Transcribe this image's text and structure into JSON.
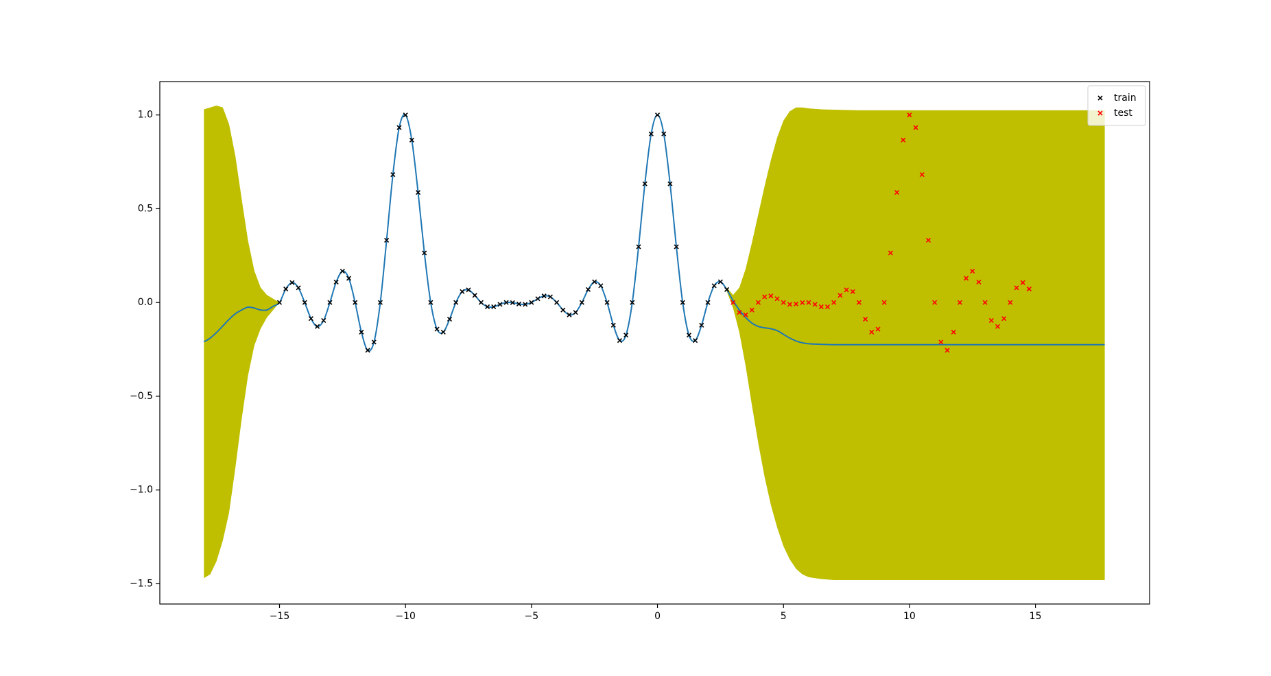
{
  "chart_data": {
    "type": "gp",
    "xlim": [
      -19.75,
      19.53
    ],
    "ylim": [
      -1.608,
      1.178
    ],
    "xticks": [
      {
        "value": -15,
        "label": "−15"
      },
      {
        "value": -10,
        "label": "−10"
      },
      {
        "value": -5,
        "label": "−5"
      },
      0,
      5,
      10,
      15
    ],
    "yticks": [
      {
        "value": -1.5,
        "label": "−1.5"
      },
      {
        "value": -1,
        "label": "−1.0"
      },
      {
        "value": -0.5,
        "label": "−0.5"
      },
      {
        "value": 0,
        "label": "0.0"
      },
      0.5,
      {
        "value": 1,
        "label": "1.0"
      }
    ],
    "grid": false,
    "legend": "upper right",
    "prediction": {
      "line_color": "#1f77b4",
      "band_color": "#bfbf00",
      "x": [
        -18,
        -17.75,
        -17.5,
        -17.25,
        -17,
        -16.75,
        -16.5,
        -16.25,
        -16,
        -15.75,
        -15.5,
        -15.25,
        -15,
        -14.75,
        -14.5,
        -14.25,
        -14,
        -13.75,
        -13.5,
        -13.25,
        -13,
        -12.75,
        -12.5,
        -12.25,
        -12,
        -11.75,
        -11.5,
        -11.25,
        -11,
        -10.75,
        -10.5,
        -10.25,
        -10,
        -9.75,
        -9.5,
        -9.25,
        -9,
        -8.75,
        -8.5,
        -8.25,
        -8,
        -7.75,
        -7.5,
        -7.25,
        -7,
        -6.75,
        -6.5,
        -6.25,
        -6,
        -5.75,
        -5.5,
        -5.25,
        -5,
        -4.75,
        -4.5,
        -4.25,
        -4,
        -3.75,
        -3.5,
        -3.25,
        -3,
        -2.75,
        -2.5,
        -2.25,
        -2,
        -1.75,
        -1.5,
        -1.25,
        -1,
        -0.75,
        -0.5,
        -0.25,
        0,
        0.25,
        0.5,
        0.75,
        1,
        1.25,
        1.5,
        1.75,
        2,
        2.25,
        2.5,
        2.75,
        3,
        3.25,
        3.5,
        3.75,
        4,
        4.25,
        4.5,
        4.75,
        5,
        5.25,
        5.5,
        5.75,
        6,
        6.5,
        7,
        8,
        9,
        10,
        11,
        12,
        13,
        14,
        15,
        16,
        17,
        17.75
      ],
      "mean": [
        -0.21,
        -0.19,
        -0.16,
        -0.125,
        -0.09,
        -0.06,
        -0.04,
        -0.025,
        -0.03,
        -0.04,
        -0.04,
        -0.02,
        0,
        0.072,
        0.106,
        0.078,
        0,
        -0.086,
        -0.128,
        -0.096,
        0,
        0.109,
        0.167,
        0.129,
        0,
        -0.158,
        -0.255,
        -0.211,
        0,
        0.332,
        0.682,
        0.933,
        1,
        0.866,
        0.587,
        0.264,
        0,
        -0.142,
        -0.158,
        -0.089,
        0,
        0.058,
        0.067,
        0.038,
        0,
        -0.023,
        -0.023,
        -0.01,
        0,
        -0.001,
        -0.008,
        -0.01,
        0,
        0.02,
        0.035,
        0.03,
        0,
        -0.04,
        -0.066,
        -0.053,
        0,
        0.069,
        0.11,
        0.089,
        0,
        -0.121,
        -0.203,
        -0.174,
        0,
        0.297,
        0.633,
        0.899,
        1,
        0.899,
        0.633,
        0.297,
        0,
        -0.174,
        -0.203,
        -0.121,
        0,
        0.089,
        0.11,
        0.069,
        0.01,
        -0.04,
        -0.08,
        -0.11,
        -0.128,
        -0.135,
        -0.14,
        -0.15,
        -0.17,
        -0.19,
        -0.205,
        -0.215,
        -0.22,
        -0.223,
        -0.225,
        -0.225,
        -0.225,
        -0.225,
        -0.225,
        -0.225,
        -0.225,
        -0.225,
        -0.225,
        -0.225,
        -0.225,
        -0.225
      ],
      "upper": [
        1.03,
        1.04,
        1.05,
        1.04,
        0.95,
        0.78,
        0.55,
        0.33,
        0.17,
        0.08,
        0.04,
        0.02,
        0,
        null,
        null,
        null,
        null,
        null,
        null,
        null,
        null,
        null,
        null,
        null,
        null,
        null,
        null,
        null,
        null,
        null,
        null,
        null,
        null,
        null,
        null,
        null,
        null,
        null,
        null,
        null,
        null,
        null,
        null,
        null,
        null,
        null,
        null,
        null,
        null,
        null,
        null,
        null,
        null,
        null,
        null,
        null,
        null,
        null,
        null,
        null,
        null,
        null,
        null,
        null,
        null,
        null,
        null,
        null,
        null,
        null,
        null,
        null,
        null,
        null,
        null,
        null,
        null,
        null,
        null,
        null,
        null,
        null,
        null,
        0.08,
        0.04,
        0.08,
        0.18,
        0.32,
        0.47,
        0.62,
        0.76,
        0.88,
        0.97,
        1.02,
        1.04,
        1.04,
        1.035,
        1.03,
        1.028,
        1.025,
        1.025,
        1.025,
        1.025,
        1.025,
        1.025,
        1.025,
        1.025,
        1.025,
        1.025,
        1.025
      ],
      "lower": [
        -1.47,
        -1.45,
        -1.38,
        -1.27,
        -1.12,
        -0.88,
        -0.62,
        -0.39,
        -0.23,
        -0.14,
        -0.08,
        -0.04,
        0,
        null,
        null,
        null,
        null,
        null,
        null,
        null,
        null,
        null,
        null,
        null,
        null,
        null,
        null,
        null,
        null,
        null,
        null,
        null,
        null,
        null,
        null,
        null,
        null,
        null,
        null,
        null,
        null,
        null,
        null,
        null,
        null,
        null,
        null,
        null,
        null,
        null,
        null,
        null,
        null,
        null,
        null,
        null,
        null,
        null,
        null,
        null,
        null,
        null,
        null,
        null,
        null,
        null,
        null,
        null,
        null,
        null,
        null,
        null,
        null,
        null,
        null,
        null,
        null,
        null,
        null,
        null,
        null,
        null,
        null,
        0.06,
        -0.03,
        -0.16,
        -0.34,
        -0.55,
        -0.75,
        -0.93,
        -1.08,
        -1.2,
        -1.3,
        -1.37,
        -1.42,
        -1.45,
        -1.465,
        -1.475,
        -1.48,
        -1.48,
        -1.48,
        -1.48,
        -1.48,
        -1.48,
        -1.48,
        -1.48,
        -1.48,
        -1.48,
        -1.48,
        -1.48
      ]
    },
    "series": [
      {
        "name": "train",
        "color": "#000000",
        "x": [
          -15,
          -14.75,
          -14.5,
          -14.25,
          -14,
          -13.75,
          -13.5,
          -13.25,
          -13,
          -12.75,
          -12.5,
          -12.25,
          -12,
          -11.75,
          -11.5,
          -11.25,
          -11,
          -10.75,
          -10.5,
          -10.25,
          -10,
          -9.75,
          -9.5,
          -9.25,
          -9,
          -8.75,
          -8.5,
          -8.25,
          -8,
          -7.75,
          -7.5,
          -7.25,
          -7,
          -6.75,
          -6.5,
          -6.25,
          -6,
          -5.75,
          -5.5,
          -5.25,
          -5,
          -4.75,
          -4.5,
          -4.25,
          -4,
          -3.75,
          -3.5,
          -3.25,
          -3,
          -2.75,
          -2.5,
          -2.25,
          -2,
          -1.75,
          -1.5,
          -1.25,
          -1,
          -0.75,
          -0.5,
          -0.25,
          0,
          0.25,
          0.5,
          0.75,
          1,
          1.25,
          1.5,
          1.75,
          2,
          2.25,
          2.5,
          2.75
        ],
        "values": [
          0,
          0.072,
          0.106,
          0.078,
          0,
          -0.086,
          -0.128,
          -0.096,
          0,
          0.109,
          0.167,
          0.129,
          0,
          -0.158,
          -0.255,
          -0.211,
          0,
          0.332,
          0.682,
          0.933,
          1,
          0.866,
          0.587,
          0.264,
          0,
          -0.142,
          -0.158,
          -0.089,
          0,
          0.058,
          0.067,
          0.038,
          0,
          -0.023,
          -0.023,
          -0.01,
          0,
          -0.001,
          -0.008,
          -0.01,
          0,
          0.02,
          0.035,
          0.03,
          0,
          -0.04,
          -0.066,
          -0.053,
          0,
          0.069,
          0.11,
          0.089,
          0,
          -0.121,
          -0.203,
          -0.174,
          0,
          0.297,
          0.633,
          0.899,
          1,
          0.899,
          0.633,
          0.297,
          0,
          -0.174,
          -0.203,
          -0.121,
          0,
          0.089,
          0.11,
          0.069
        ]
      },
      {
        "name": "test",
        "color": "#ff0000",
        "x": [
          3,
          3.25,
          3.5,
          3.75,
          4,
          4.25,
          4.5,
          4.75,
          5,
          5.25,
          5.5,
          5.75,
          6,
          6.25,
          6.5,
          6.75,
          7,
          7.25,
          7.5,
          7.75,
          8,
          8.25,
          8.5,
          8.75,
          9,
          9.25,
          9.5,
          9.75,
          10,
          10.25,
          10.5,
          10.75,
          11,
          11.25,
          11.5,
          11.75,
          12,
          12.25,
          12.5,
          12.75,
          13,
          13.25,
          13.5,
          13.75,
          14,
          14.25,
          14.5,
          14.75
        ],
        "values": [
          0,
          -0.053,
          -0.066,
          -0.04,
          0,
          0.03,
          0.035,
          0.02,
          0,
          -0.01,
          -0.008,
          -0.001,
          0,
          -0.01,
          -0.023,
          -0.023,
          0,
          0.038,
          0.067,
          0.058,
          0,
          -0.089,
          -0.158,
          -0.142,
          0,
          0.264,
          0.587,
          0.866,
          1,
          0.933,
          0.682,
          0.332,
          0,
          -0.211,
          -0.255,
          -0.158,
          0,
          0.129,
          0.167,
          0.109,
          0,
          -0.096,
          -0.128,
          -0.086,
          0,
          0.078,
          0.106,
          0.072
        ]
      }
    ]
  }
}
